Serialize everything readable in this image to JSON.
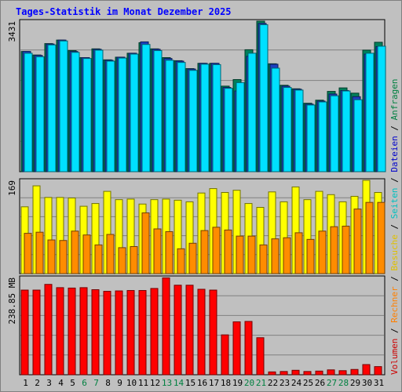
{
  "title": "Tages-Statistik im Monat Dezember 2025",
  "right_legend": [
    {
      "text": "Volumen",
      "color": "#cc0000"
    },
    {
      "text": " / ",
      "color": "#000000"
    },
    {
      "text": "Rechner",
      "color": "#ff8000"
    },
    {
      "text": " / ",
      "color": "#000000"
    },
    {
      "text": "Besuche",
      "color": "#e0c000"
    },
    {
      "text": " / ",
      "color": "#000000"
    },
    {
      "text": "Seiten",
      "color": "#00c0c0"
    },
    {
      "text": " / ",
      "color": "#000000"
    },
    {
      "text": "Dateien",
      "color": "#0000cc"
    },
    {
      "text": " / ",
      "color": "#000000"
    },
    {
      "text": "Anfragen",
      "color": "#008040"
    }
  ],
  "colors": {
    "anfragen": "#00805a",
    "dateien": "#1c3fbf",
    "seiten": "#00e0ff",
    "besuche": "#ffff00",
    "rechner": "#ff8c00",
    "volumen": "#ff0000",
    "weekend_day": "#008040",
    "weekday": "#000000"
  },
  "chart_data": [
    {
      "type": "bar",
      "panel": "top",
      "ylabel": "3431",
      "ylim": [
        0,
        3431
      ],
      "x": [
        1,
        2,
        3,
        4,
        5,
        6,
        7,
        8,
        9,
        10,
        11,
        12,
        13,
        14,
        15,
        16,
        17,
        18,
        19,
        20,
        21,
        22,
        23,
        24,
        25,
        26,
        27,
        28,
        29,
        30,
        31
      ],
      "series": [
        {
          "name": "Anfragen",
          "values": [
            2740,
            2660,
            2920,
            3000,
            2760,
            2600,
            2800,
            2550,
            2610,
            2700,
            2940,
            2800,
            2600,
            2530,
            2350,
            2470,
            2470,
            1950,
            2100,
            2780,
            3431,
            2460,
            1970,
            1890,
            1560,
            1630,
            1830,
            1910,
            1790,
            2770,
            2950
          ]
        },
        {
          "name": "Dateien",
          "values": [
            2740,
            2650,
            2910,
            3000,
            2740,
            2600,
            2790,
            2540,
            2610,
            2700,
            2960,
            2790,
            2580,
            2520,
            2340,
            2470,
            2470,
            1920,
            1840,
            2630,
            3380,
            2450,
            1950,
            1880,
            1540,
            1610,
            1770,
            1850,
            1710,
            2680,
            2850
          ]
        },
        {
          "name": "Seiten",
          "values": [
            2700,
            2620,
            2890,
            2980,
            2720,
            2580,
            2770,
            2520,
            2590,
            2680,
            2900,
            2760,
            2540,
            2490,
            2310,
            2450,
            2440,
            1900,
            2030,
            2700,
            3350,
            2360,
            1920,
            1860,
            1520,
            1590,
            1730,
            1840,
            1640,
            2700,
            2860
          ]
        }
      ]
    },
    {
      "type": "bar",
      "panel": "middle",
      "ylabel": "169",
      "ylim": [
        0,
        169
      ],
      "x": [
        1,
        2,
        3,
        4,
        5,
        6,
        7,
        8,
        9,
        10,
        11,
        12,
        13,
        14,
        15,
        16,
        17,
        18,
        19,
        20,
        21,
        22,
        23,
        24,
        25,
        26,
        27,
        28,
        29,
        30,
        31
      ],
      "series": [
        {
          "name": "Besuche",
          "values": [
            121,
            159,
            138,
            138,
            137,
            122,
            127,
            149,
            134,
            135,
            126,
            134,
            135,
            133,
            130,
            146,
            154,
            147,
            151,
            127,
            120,
            148,
            130,
            157,
            134,
            149,
            143,
            130,
            140,
            169,
            147
          ]
        },
        {
          "name": "Rechner",
          "values": [
            73,
            75,
            61,
            60,
            77,
            70,
            52,
            71,
            47,
            49,
            110,
            81,
            76,
            45,
            55,
            78,
            84,
            79,
            68,
            68,
            52,
            63,
            65,
            74,
            62,
            77,
            85,
            86,
            117,
            129,
            129
          ]
        }
      ]
    },
    {
      "type": "bar",
      "panel": "bottom",
      "ylabel": "238.85 MB",
      "ylim": [
        0,
        238.85
      ],
      "x": [
        1,
        2,
        3,
        4,
        5,
        6,
        7,
        8,
        9,
        10,
        11,
        12,
        13,
        14,
        15,
        16,
        17,
        18,
        19,
        20,
        21,
        22,
        23,
        24,
        25,
        26,
        27,
        28,
        29,
        30,
        31
      ],
      "series": [
        {
          "name": "Volumen",
          "values": [
            208,
            208,
            222,
            214,
            213,
            214,
            209,
            205,
            206,
            207,
            207,
            212,
            238,
            220,
            220,
            210,
            208,
            98,
            130,
            131,
            91,
            7,
            8,
            11,
            8,
            9,
            12,
            10,
            13,
            25,
            20
          ]
        }
      ]
    }
  ],
  "x_axis": {
    "labels": [
      "1",
      "2",
      "3",
      "4",
      "5",
      "6",
      "7",
      "8",
      "9",
      "10",
      "11",
      "12",
      "13",
      "14",
      "15",
      "16",
      "17",
      "18",
      "19",
      "20",
      "21",
      "22",
      "23",
      "24",
      "25",
      "26",
      "27",
      "28",
      "29",
      "30",
      "31"
    ],
    "weekend": [
      false,
      false,
      false,
      false,
      false,
      true,
      true,
      false,
      false,
      false,
      false,
      false,
      true,
      true,
      false,
      false,
      false,
      false,
      false,
      true,
      true,
      false,
      false,
      false,
      false,
      false,
      true,
      true,
      false,
      false,
      false
    ]
  }
}
